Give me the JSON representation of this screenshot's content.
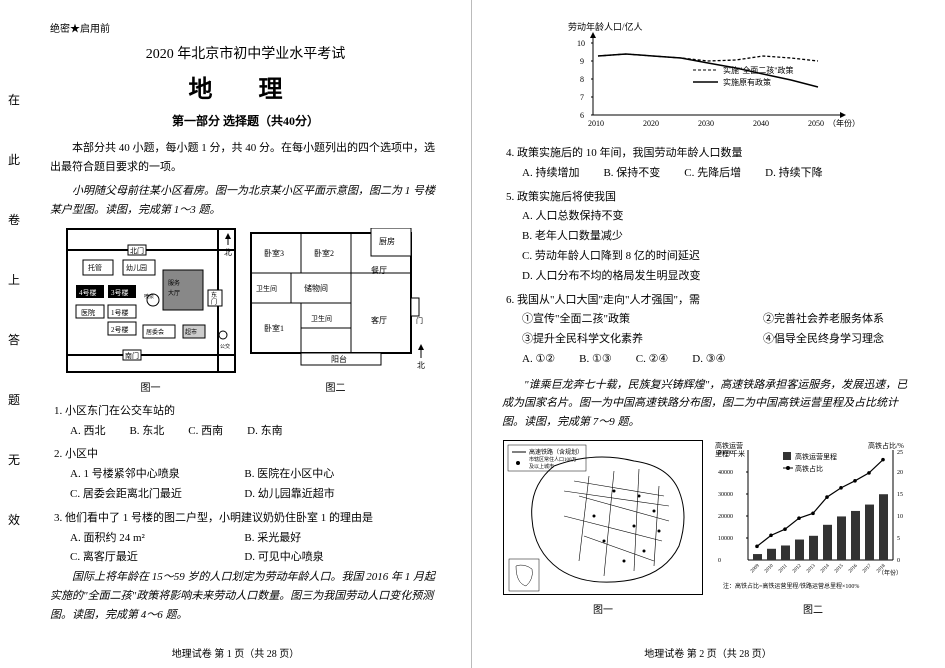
{
  "classified": "绝密★启用前",
  "exam_title": "2020 年北京市初中学业水平考试",
  "subject": "地 理",
  "section": "第一部分  选择题（共40分）",
  "instructions": "本部分共 40 小题，每小题 1 分，共 40 分。在每小题列出的四个选项中，选出最符合题目要求的一项。",
  "intro1": "小明随父母前往某小区看房。图一为北京某小区平面示意图，图二为 1 号楼某户型图。读图，完成第 1～3 题。",
  "fig1_label": "图一",
  "fig2_label": "图二",
  "map": {
    "buildings": [
      "托管",
      "幼儿园",
      "4号楼",
      "3号楼",
      "1号楼",
      "2号楼",
      "居委会",
      "东门",
      "南门",
      "超市",
      "服务大厅"
    ],
    "compass": "北"
  },
  "floorplan": {
    "rooms": [
      "厨房",
      "卧室3",
      "卧室2",
      "餐厅",
      "卫生间",
      "储物间",
      "卧室1",
      "客厅",
      "卫生间",
      "阳台",
      "门"
    ]
  },
  "q1": {
    "text": "1. 小区东门在公交车站的",
    "a": "A. 西北",
    "b": "B. 东北",
    "c": "C. 西南",
    "d": "D. 东南"
  },
  "q2": {
    "text": "2. 小区中",
    "a": "A. 1 号楼紧邻中心喷泉",
    "b": "B. 医院在小区中心",
    "c": "C. 居委会距离北门最近",
    "d": "D. 幼儿园靠近超市"
  },
  "q3": {
    "text": "3. 他们看中了 1 号楼的图二户型，小明建议奶奶住卧室 1 的理由是",
    "a": "A. 面积约 24 m²",
    "b": "B. 采光最好",
    "c": "C. 离客厅最近",
    "d": "D. 可见中心喷泉"
  },
  "intro2": "国际上将年龄在 15～59 岁的人口划定为劳动年龄人口。我国 2016 年 1 月起实施的\"全面二孩\"政策将影响未来劳动人口数量。图三为我国劳动人口变化预测图。读图，完成第 4～6 题。",
  "footer_left": "地理试卷  第 1 页（共 28 页）",
  "side": [
    "在",
    "此",
    "卷",
    "上",
    "答",
    "题",
    "无",
    "效"
  ],
  "chart3": {
    "ylabel": "劳动年龄人口/亿人",
    "xlabel": "（年份）",
    "yticks": [
      6,
      7,
      8,
      9,
      10
    ],
    "xticks": [
      2010,
      2020,
      2030,
      2040,
      2050
    ],
    "legend1": "实施\"全面二孩\"政策",
    "legend2": "实施原有政策",
    "dashed": [
      [
        2010,
        9.3
      ],
      [
        2015,
        9.4
      ],
      [
        2020,
        9.3
      ],
      [
        2025,
        9.2
      ],
      [
        2030,
        9.0
      ],
      [
        2035,
        9.1
      ],
      [
        2040,
        9.3
      ],
      [
        2045,
        9.2
      ],
      [
        2050,
        9.0
      ]
    ],
    "solid": [
      [
        2010,
        9.3
      ],
      [
        2015,
        9.4
      ],
      [
        2020,
        9.3
      ],
      [
        2025,
        9.2
      ],
      [
        2030,
        8.9
      ],
      [
        2035,
        8.6
      ],
      [
        2040,
        8.3
      ],
      [
        2045,
        8.0
      ],
      [
        2050,
        7.7
      ]
    ]
  },
  "q4": {
    "text": "4. 政策实施后的 10 年间，我国劳动年龄人口数量",
    "a": "A. 持续增加",
    "b": "B. 保持不变",
    "c": "C. 先降后增",
    "d": "D. 持续下降"
  },
  "q5": {
    "text": "5. 政策实施后将使我国",
    "a": "A. 人口总数保持不变",
    "b": "B. 老年人口数量减少",
    "c": "C. 劳动年龄人口降到 8 亿的时间延迟",
    "d": "D. 人口分布不均的格局发生明显改变"
  },
  "q6": {
    "text": "6. 我国从\"人口大国\"走向\"人才强国\"，需",
    "o1": "①宣传\"全面二孩\"政策",
    "o2": "②完善社会养老服务体系",
    "o3": "③提升全民科学文化素养",
    "o4": "④倡导全民终身学习理念",
    "a": "A. ①②",
    "b": "B. ①③",
    "c": "C. ②④",
    "d": "D. ③④"
  },
  "intro3": "\"谁乘巨龙奔七十载，民族复兴铸辉煌\"，高速铁路承担客运服务，发展迅速，已成为国家名片。图一为中国高速铁路分布图，图二为中国高铁运营里程及占比统计图。读图，完成第 7～9 题。",
  "legend_map": {
    "rail": "高速铁路（含规划）",
    "city": "市辖区常住人口100万及以上城市"
  },
  "chart_bar": {
    "ylabel_left": "高铁运营里程/千米",
    "ylabel_right": "高铁占比/%",
    "yticks_left": [
      0,
      10000,
      20000,
      30000,
      40000,
      50000
    ],
    "yticks_right": [
      0,
      5,
      10,
      15,
      20,
      25
    ],
    "legend_bar": "高铁运营里程",
    "legend_line": "高铁占比",
    "years": [
      2009,
      2010,
      2011,
      2012,
      2013,
      2014,
      2015,
      2016,
      2017,
      2018
    ],
    "bars": [
      2700,
      5100,
      6600,
      9300,
      11000,
      16000,
      19800,
      22300,
      25200,
      29900
    ],
    "line": [
      3.1,
      5.6,
      7.0,
      9.5,
      10.6,
      14.3,
      16.4,
      18.0,
      19.8,
      22.8
    ],
    "note": "注：高铁占比=高铁运营里程/铁路运营总里程×100%",
    "xlabel": "（年份）"
  },
  "fig_map_label": "图一",
  "fig_bar_label": "图二",
  "footer_right": "地理试卷  第 2 页（共 28 页）"
}
